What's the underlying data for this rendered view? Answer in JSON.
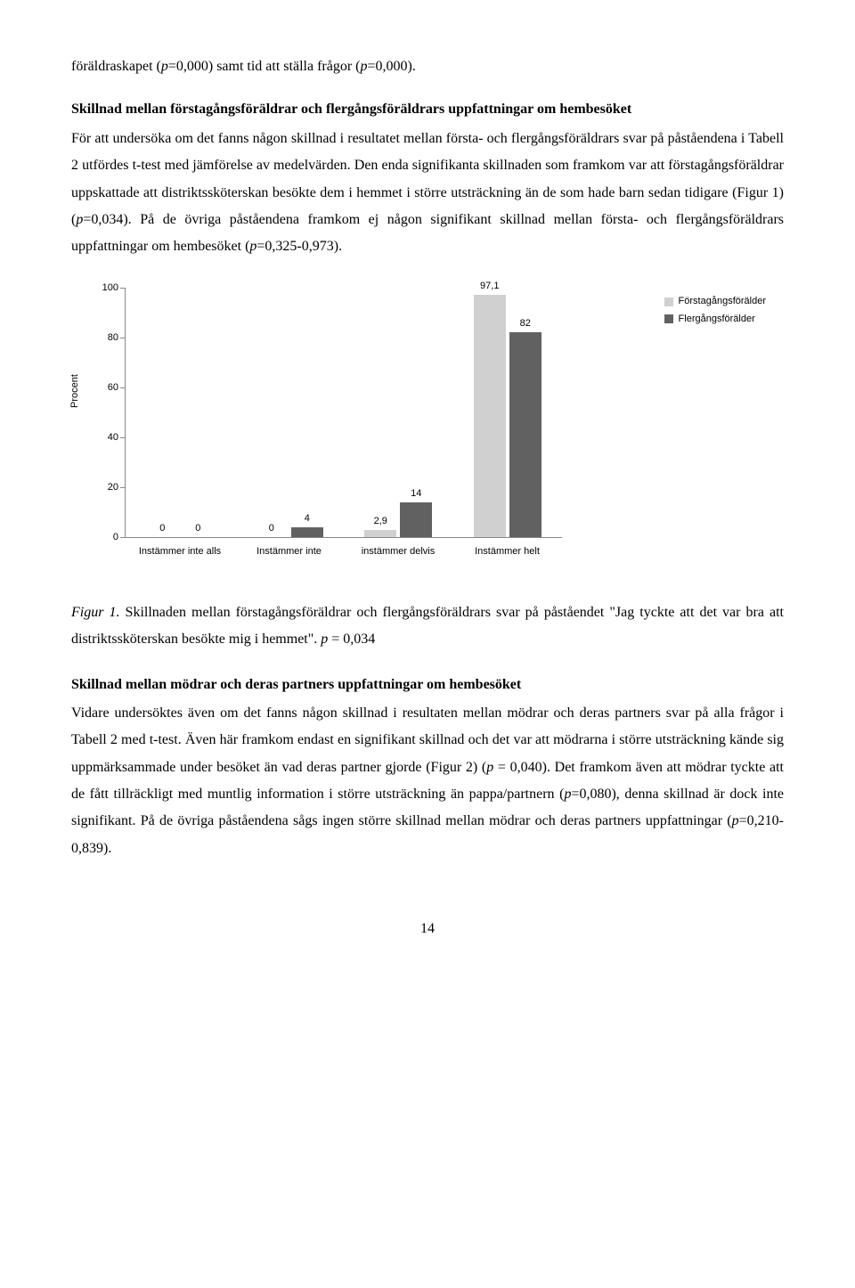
{
  "p1_part1": "föräldraskapet (",
  "p1_em1": "p",
  "p1_part2": "=0,000) samt tid att ställa frågor (",
  "p1_em2": "p",
  "p1_part3": "=0,000).",
  "h1": "Skillnad mellan förstagångsföräldrar och flergångsföräldrars uppfattningar om hembesöket",
  "p2_part1": "För att undersöka om det fanns någon skillnad i resultatet mellan första- och flergångsföräldrars svar på påståendena i Tabell 2 utfördes t-test med jämförelse av medelvärden. Den enda signifikanta skillnaden som framkom var att förstagångsföräldrar uppskattade att distriktssköterskan besökte dem i hemmet i större utsträckning än de som hade barn sedan tidigare (Figur 1) (",
  "p2_em1": "p",
  "p2_part2": "=0,034). På de övriga påståendena framkom ej någon signifikant skillnad mellan första- och flergångsföräldrars uppfattningar om hembesöket (",
  "p2_em2": "p",
  "p2_part3": "=0,325-0,973).",
  "chart": {
    "ylabel": "Procent",
    "ylim": [
      0,
      100
    ],
    "ytick_step": 20,
    "yticks": [
      0,
      20,
      40,
      60,
      80,
      100
    ],
    "colors": {
      "first": "#d0d0d0",
      "fler": "#616161"
    },
    "legend": {
      "first": "Förstagångsförälder",
      "fler": "Flergångsförälder"
    },
    "categories": [
      {
        "label": "Instämmer inte alls",
        "first": 0,
        "fler": 0,
        "first_lbl": "0",
        "fler_lbl": "0"
      },
      {
        "label": "Instämmer inte",
        "first": 0,
        "fler": 4,
        "first_lbl": "0",
        "fler_lbl": "4"
      },
      {
        "label": "instämmer delvis",
        "first": 2.9,
        "fler": 14,
        "first_lbl": "2,9",
        "fler_lbl": "14"
      },
      {
        "label": "Instämmer helt",
        "first": 97.1,
        "fler": 82,
        "first_lbl": "97,1",
        "fler_lbl": "82"
      }
    ]
  },
  "caption_em1": "Figur 1.",
  "caption_mid": " Skillnaden mellan förstagångsföräldrar och flergångsföräldrars svar på påståendet \"Jag tyckte att det var bra att distriktssköterskan besökte mig i hemmet\". ",
  "caption_em2": "p",
  "caption_end": " = 0,034",
  "h2": "Skillnad mellan mödrar och deras partners uppfattningar om hembesöket",
  "p3_part1": "Vidare undersöktes även om det fanns någon skillnad i resultaten mellan mödrar och deras partners svar på alla frågor i Tabell 2 med t-test. Även här framkom endast en signifikant skillnad och det var att mödrarna i större utsträckning kände sig uppmärksammade under besöket än vad deras partner gjorde (Figur 2) (",
  "p3_em1": "p",
  "p3_part2": " = 0,040). Det framkom även att mödrar tyckte att de fått tillräckligt med muntlig information i större utsträckning än pappa/partnern (",
  "p3_em2": "p",
  "p3_part3": "=0,080), denna skillnad är dock inte signifikant. På de övriga påståendena sågs ingen större skillnad mellan mödrar och deras partners uppfattningar (",
  "p3_em3": "p",
  "p3_part4": "=0,210-0,839).",
  "page_num": "14"
}
